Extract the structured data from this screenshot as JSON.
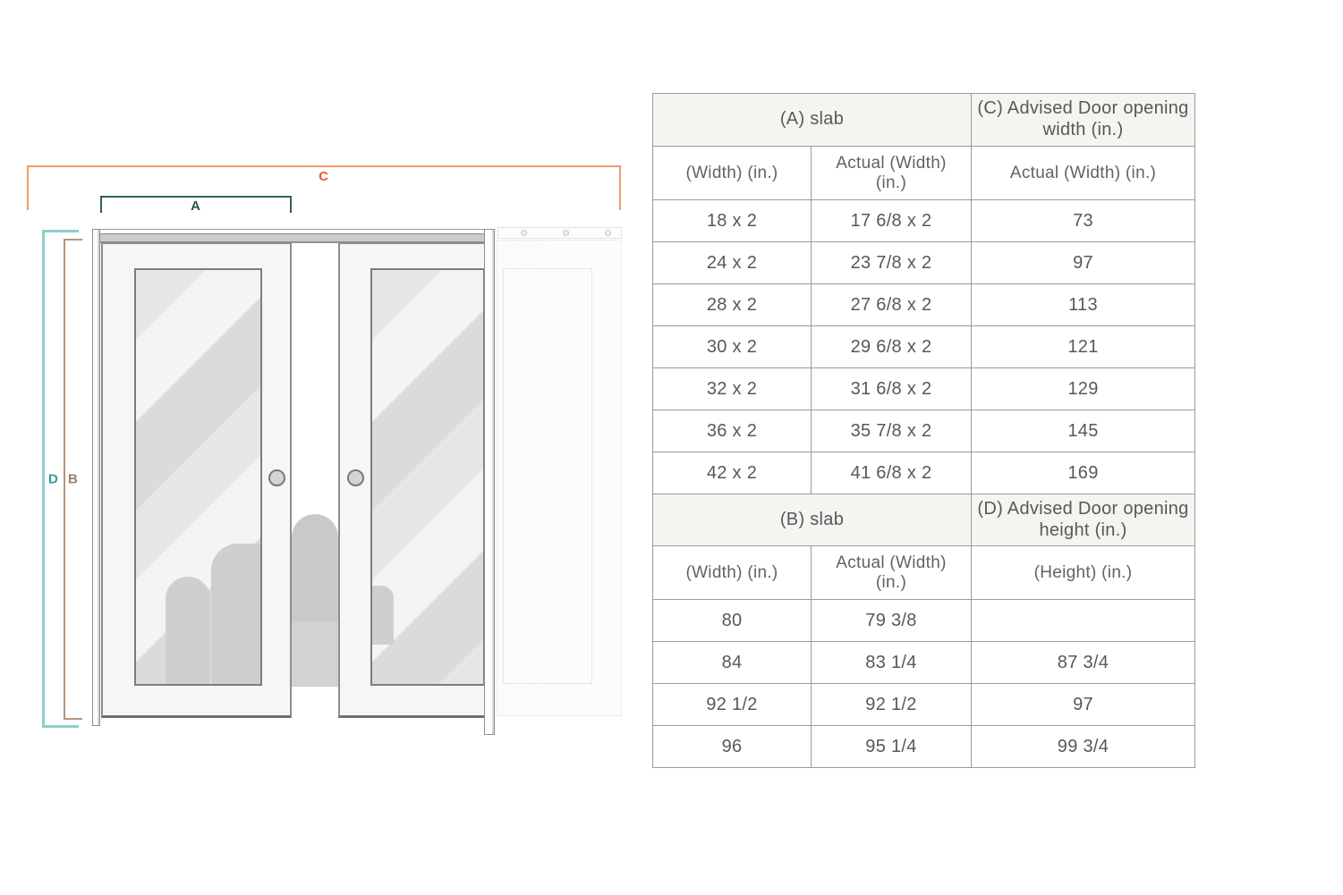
{
  "diagram": {
    "dimension_labels": {
      "a": "A",
      "b": "B",
      "c": "C",
      "d": "D"
    },
    "parts": {
      "left_door": "door-panel-left",
      "right_door": "door-panel-right",
      "pocket_ghost": "pocket-frame-ghost"
    }
  },
  "colors": {
    "teal_dark": "#1C584F",
    "teal_bright": "#2AA79D",
    "teal_light_bracket": "#8CCFC9",
    "orange": "#F15A24",
    "orange_light_bracket": "#F09A6B",
    "brown": "#8F6B55",
    "brown_light_bracket": "#B4957F",
    "table_grid": "#9B9B9B",
    "table_header_bg": "#F4F4F1",
    "table_text": "#58585A"
  },
  "table": {
    "sections": [
      {
        "title_left": "(A) slab",
        "title_right": "(C) Advised Door opening width (in.)",
        "columns": [
          "(Width) (in.)",
          "Actual (Width) (in.)",
          "Actual (Width) (in.)"
        ],
        "rows": [
          [
            "18 x 2",
            "17 6/8 x 2",
            "73"
          ],
          [
            "24 x 2",
            "23 7/8 x 2",
            "97"
          ],
          [
            "28 x 2",
            "27 6/8 x 2",
            "113"
          ],
          [
            "30 x 2",
            "29 6/8 x 2",
            "121"
          ],
          [
            "32 x 2",
            "31 6/8 x 2",
            "129"
          ],
          [
            "36 x 2",
            "35 7/8 x 2",
            "145"
          ],
          [
            "42 x 2",
            "41 6/8 x 2",
            "169"
          ]
        ]
      },
      {
        "title_left": "(B) slab",
        "title_right": "(D) Advised Door opening height (in.)",
        "columns": [
          "(Width) (in.)",
          "Actual (Width) (in.)",
          "(Height) (in.)"
        ],
        "rows": [
          [
            "80",
            "79 3/8",
            ""
          ],
          [
            "84",
            "83 1/4",
            "87 3/4"
          ],
          [
            "92 1/2",
            "92 1/2",
            "97"
          ],
          [
            "96",
            "95 1/4",
            "99 3/4"
          ]
        ]
      }
    ]
  }
}
